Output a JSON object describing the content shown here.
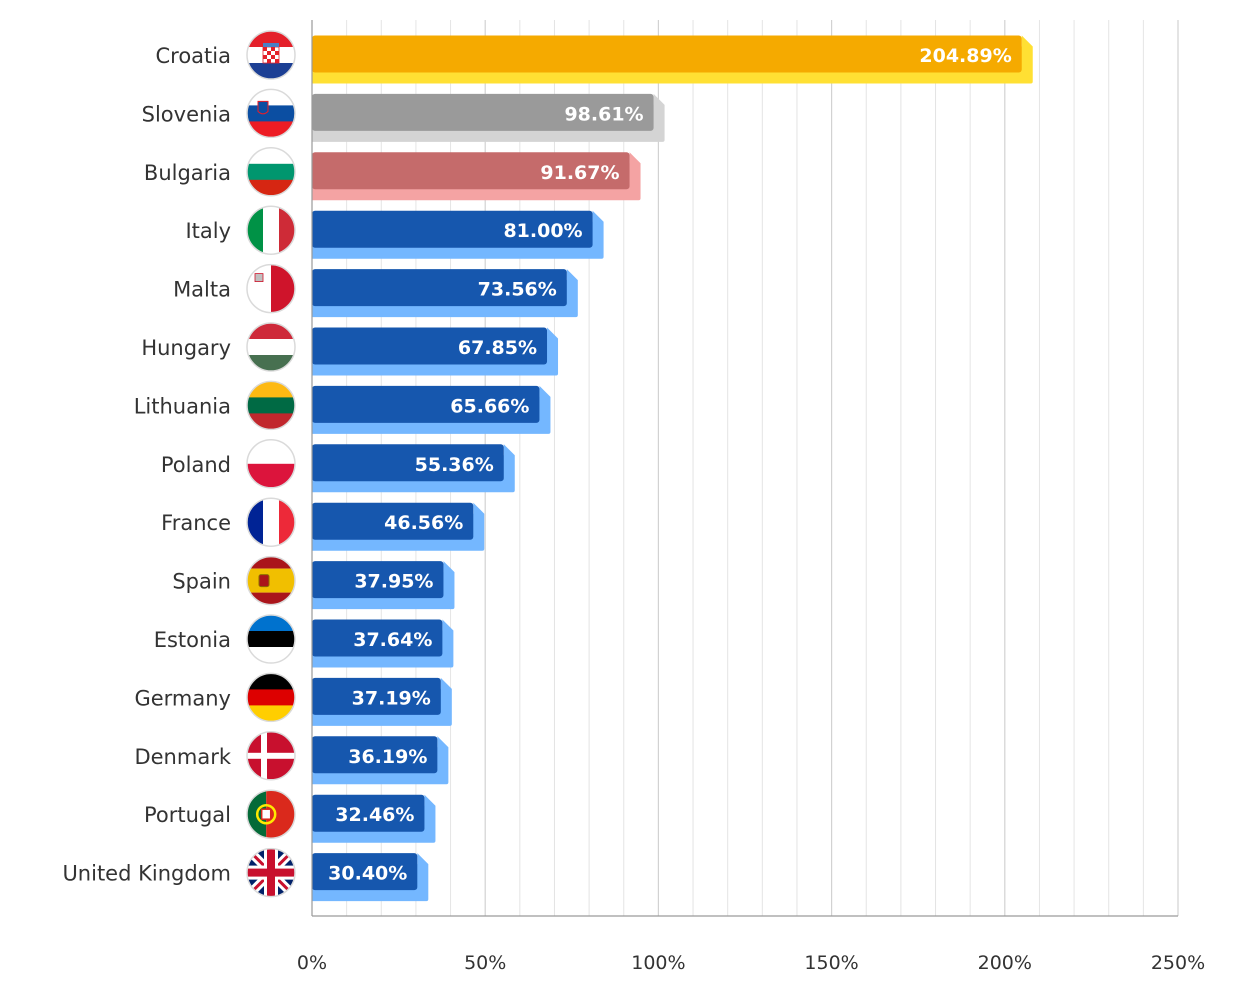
{
  "chart_data": {
    "type": "bar",
    "orientation": "horizontal",
    "title": "",
    "xlabel": "",
    "ylabel": "",
    "xlim": [
      0,
      250
    ],
    "grid": true,
    "legend": "none",
    "x_ticks": [
      "0%",
      "50%",
      "100%",
      "150%",
      "200%",
      "250%"
    ],
    "x_tick_values": [
      0,
      50,
      100,
      150,
      200,
      250
    ],
    "categories": [
      "Croatia",
      "Slovenia",
      "Bulgaria",
      "Italy",
      "Malta",
      "Hungary",
      "Lithuania",
      "Poland",
      "France",
      "Spain",
      "Estonia",
      "Germany",
      "Denmark",
      "Portugal",
      "United Kingdom"
    ],
    "values": [
      204.89,
      98.61,
      91.67,
      81.0,
      73.56,
      67.85,
      65.66,
      55.36,
      46.56,
      37.95,
      37.64,
      37.19,
      36.19,
      32.46,
      30.4
    ],
    "value_labels": [
      "204.89%",
      "98.61%",
      "91.67%",
      "81.00%",
      "73.56%",
      "67.85%",
      "65.66%",
      "55.36%",
      "46.56%",
      "37.95%",
      "37.64%",
      "37.19%",
      "36.19%",
      "32.46%",
      "30.40%"
    ],
    "flag_icons": [
      "croatia-flag-icon",
      "slovenia-flag-icon",
      "bulgaria-flag-icon",
      "italy-flag-icon",
      "malta-flag-icon",
      "hungary-flag-icon",
      "lithuania-flag-icon",
      "poland-flag-icon",
      "france-flag-icon",
      "spain-flag-icon",
      "estonia-flag-icon",
      "germany-flag-icon",
      "denmark-flag-icon",
      "portugal-flag-icon",
      "united-kingdom-flag-icon"
    ],
    "bar_colors": {
      "first": {
        "main": "#F5AA00",
        "shadow": "#FFE033"
      },
      "second": {
        "main": "#9A9A9A",
        "shadow": "#D4D4D4"
      },
      "third": {
        "main": "#C56B6B",
        "shadow": "#F4A3A3"
      },
      "default": {
        "main": "#1657AE",
        "shadow": "#74B7FF"
      }
    },
    "grid_color": "#E4E4E4",
    "axis_color": "#9A9A9A"
  }
}
